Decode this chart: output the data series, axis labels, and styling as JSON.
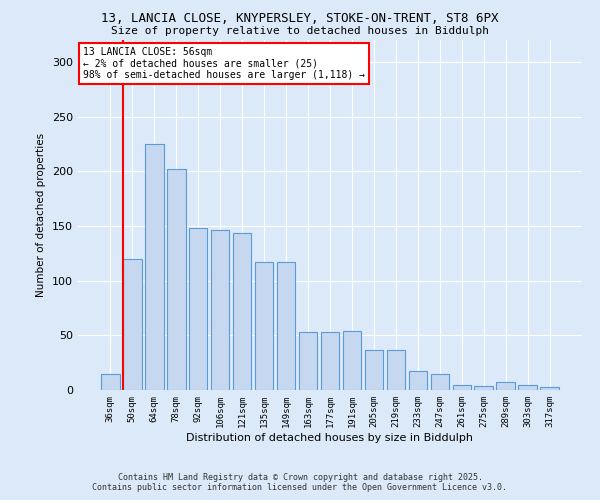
{
  "title_line1": "13, LANCIA CLOSE, KNYPERSLEY, STOKE-ON-TRENT, ST8 6PX",
  "title_line2": "Size of property relative to detached houses in Biddulph",
  "xlabel": "Distribution of detached houses by size in Biddulph",
  "ylabel": "Number of detached properties",
  "categories": [
    "36sqm",
    "50sqm",
    "64sqm",
    "78sqm",
    "92sqm",
    "106sqm",
    "121sqm",
    "135sqm",
    "149sqm",
    "163sqm",
    "177sqm",
    "191sqm",
    "205sqm",
    "219sqm",
    "233sqm",
    "247sqm",
    "261sqm",
    "275sqm",
    "289sqm",
    "303sqm",
    "317sqm"
  ],
  "values": [
    15,
    120,
    225,
    202,
    148,
    146,
    144,
    117,
    117,
    53,
    53,
    54,
    37,
    37,
    17,
    15,
    5,
    4,
    7,
    5,
    3
  ],
  "bar_color": "#c5d8f0",
  "bar_edge_color": "#5b9bd5",
  "vline_color": "red",
  "annotation_text": "13 LANCIA CLOSE: 56sqm\n← 2% of detached houses are smaller (25)\n98% of semi-detached houses are larger (1,118) →",
  "annotation_box_color": "white",
  "annotation_box_edge": "red",
  "ylim": [
    0,
    320
  ],
  "yticks": [
    0,
    50,
    100,
    150,
    200,
    250,
    300
  ],
  "footer_line1": "Contains HM Land Registry data © Crown copyright and database right 2025.",
  "footer_line2": "Contains public sector information licensed under the Open Government Licence v3.0.",
  "bg_color": "#dce9f8",
  "plot_bg_color": "#dce9f8"
}
